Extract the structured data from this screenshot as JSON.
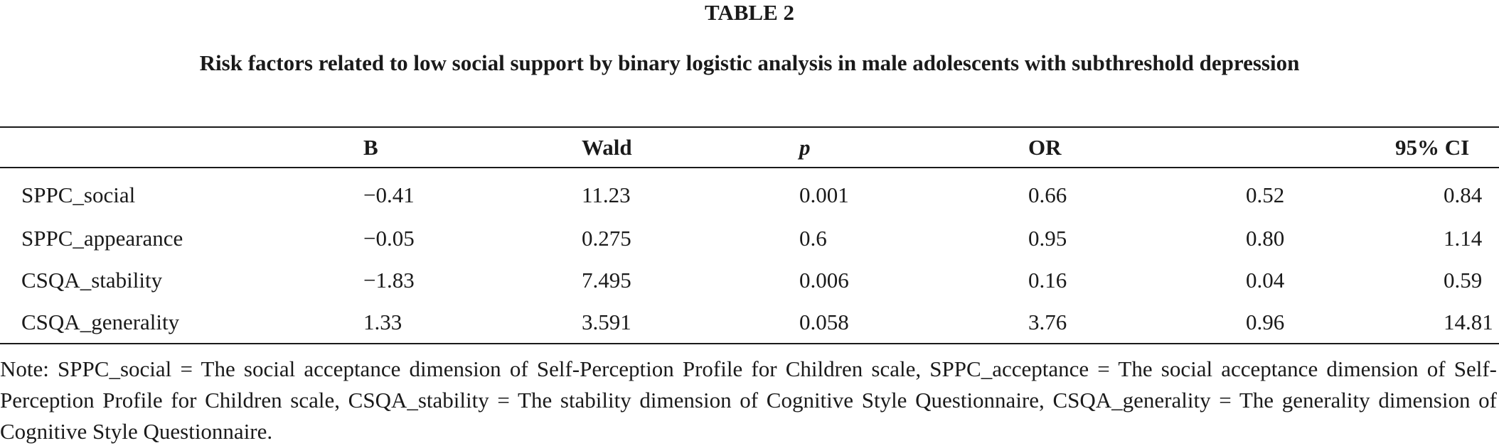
{
  "table": {
    "label": "TABLE 2",
    "caption": "Risk factors related to low social support by binary logistic analysis in male adolescents with subthreshold depression",
    "headers": {
      "factor": "",
      "b": "B",
      "wald": "Wald",
      "p": "p",
      "or": "OR",
      "ci": "95% CI"
    },
    "rows": [
      {
        "factor": "SPPC_social",
        "b": "−0.41",
        "wald": "11.23",
        "p": "0.001",
        "or": "0.66",
        "ci_low": "0.52",
        "ci_high": "0.84"
      },
      {
        "factor": "SPPC_appearance",
        "b": "−0.05",
        "wald": "0.275",
        "p": "0.6",
        "or": "0.95",
        "ci_low": "0.80",
        "ci_high": "1.14"
      },
      {
        "factor": "CSQA_stability",
        "b": "−1.83",
        "wald": "7.495",
        "p": "0.006",
        "or": "0.16",
        "ci_low": "0.04",
        "ci_high": "0.59"
      },
      {
        "factor": "CSQA_generality",
        "b": "1.33",
        "wald": "3.591",
        "p": "0.058",
        "or": "3.76",
        "ci_low": "0.96",
        "ci_high": "14.81"
      }
    ],
    "note": "Note: SPPC_social = The social acceptance dimension of Self-Perception Profile for Children scale, SPPC_acceptance = The social acceptance dimension of Self-Perception Profile for Children scale, CSQA_stability = The stability dimension of Cognitive Style Questionnaire, CSQA_generality = The generality dimension of Cognitive Style Questionnaire."
  }
}
